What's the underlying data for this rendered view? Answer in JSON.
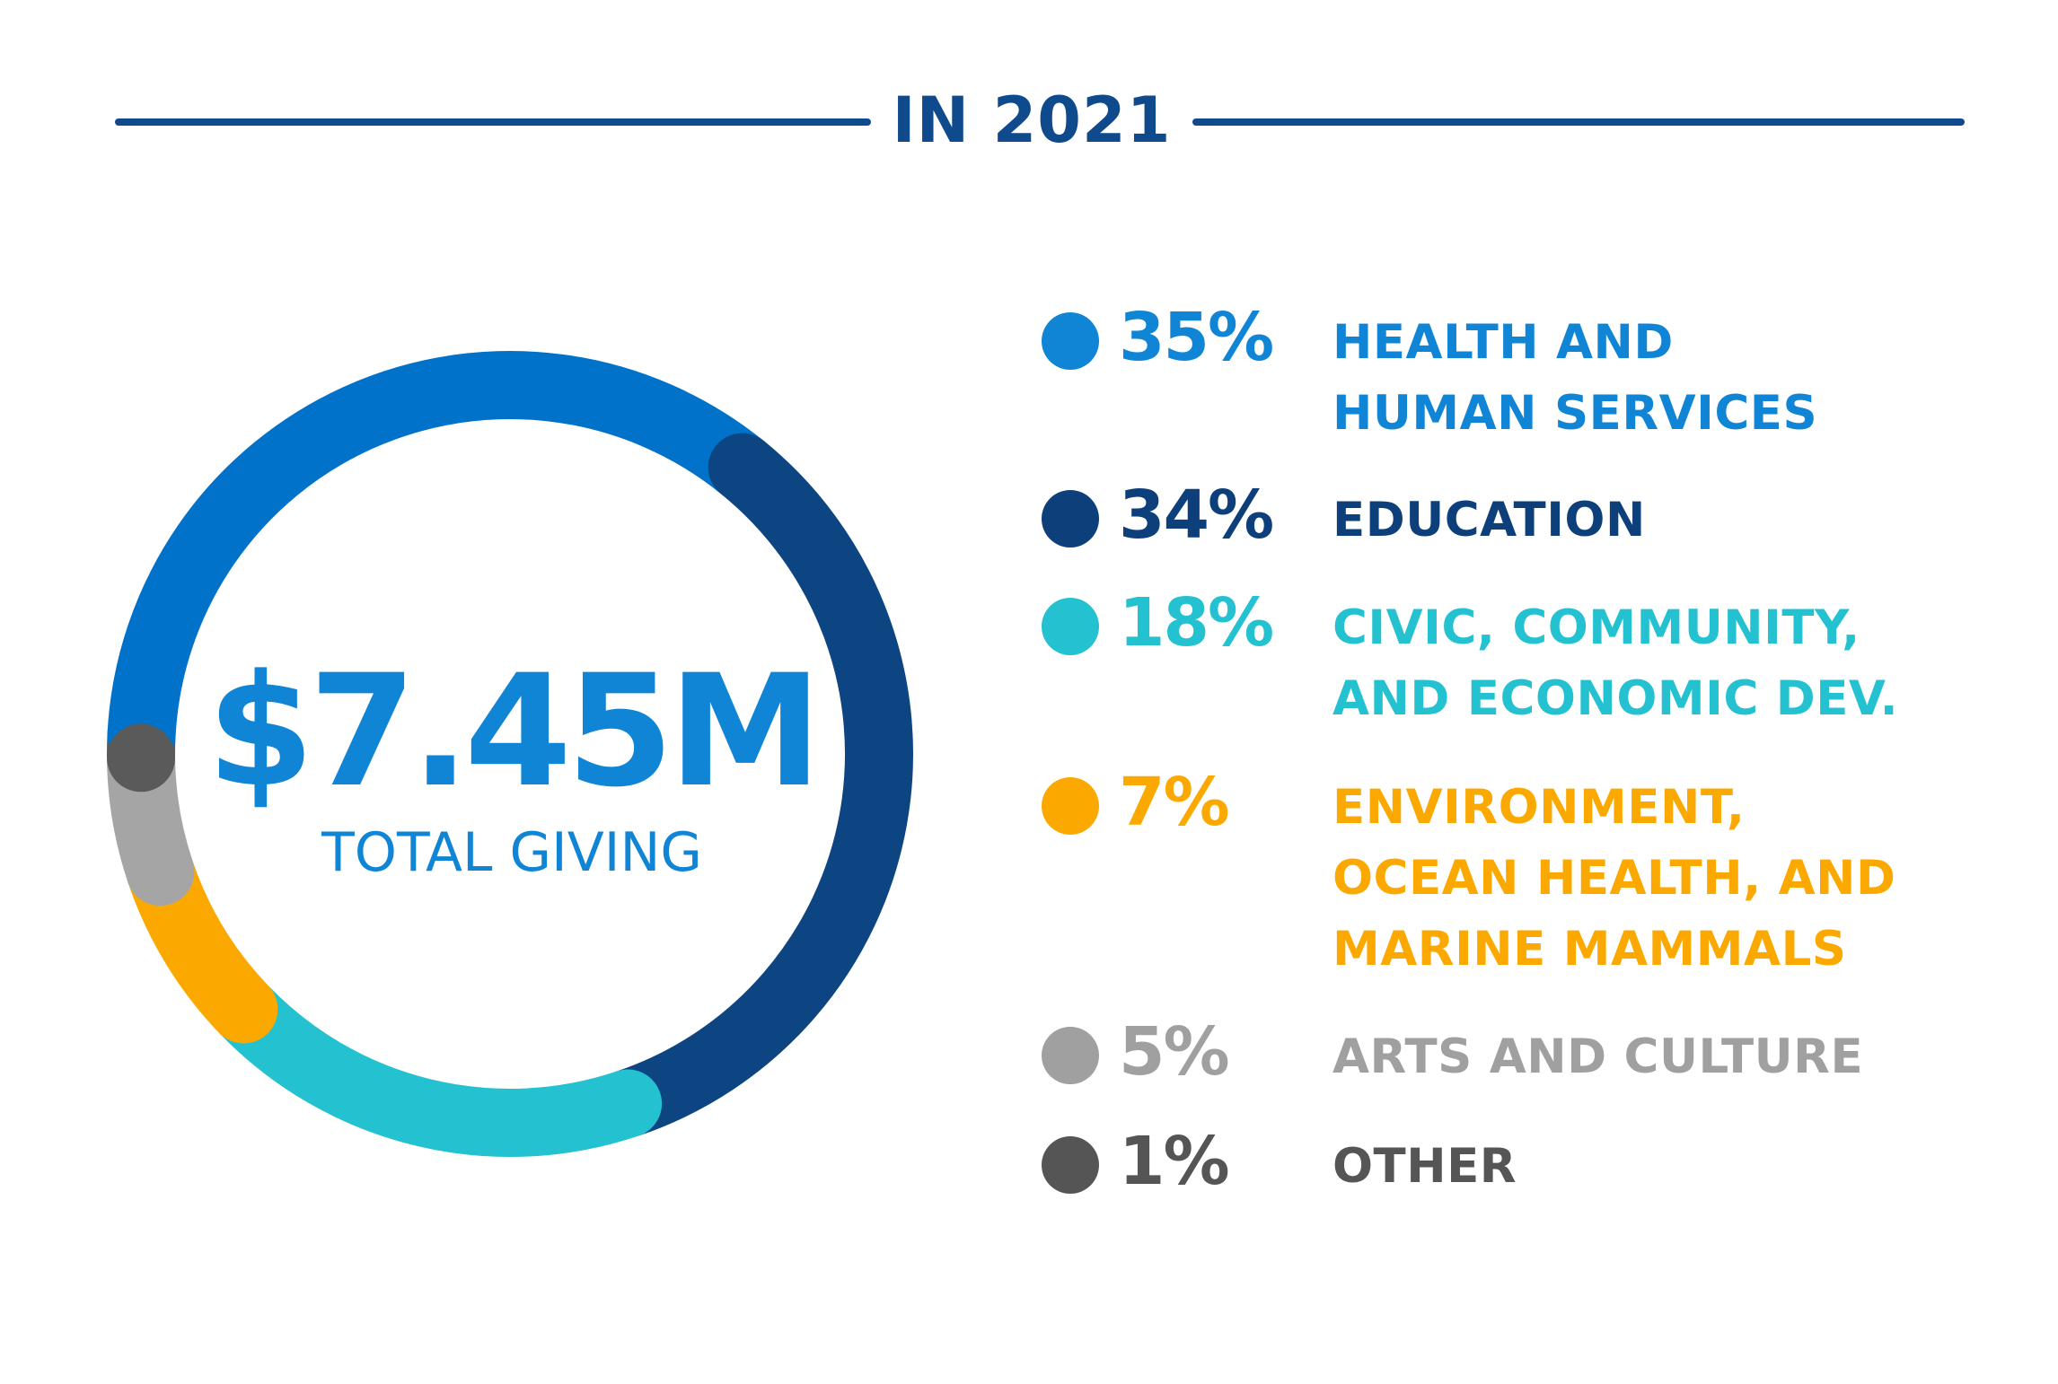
{
  "heading": "IN 2021",
  "center": {
    "value": "$7.45M",
    "label": "TOTAL GIVING"
  },
  "chart_data": {
    "type": "pie",
    "categories": [
      "HEALTH AND HUMAN SERVICES",
      "EDUCATION",
      "CIVIC, COMMUNITY, AND ECONOMIC DEV.",
      "ENVIRONMENT, OCEAN HEALTH, AND MARINE MAMMALS",
      "ARTS AND CULTURE",
      "OTHER"
    ],
    "values": [
      35,
      34,
      18,
      7,
      5,
      1
    ],
    "colors": [
      "#0072c9",
      "#0d4582",
      "#24c2d0",
      "#fba900",
      "#a5a5a5",
      "#5a5a5a"
    ],
    "unit": "%"
  },
  "legend": [
    {
      "pct": "35%",
      "label": "HEALTH AND\nHUMAN SERVICES",
      "pct_color": "#1085d6",
      "label_color": "#1085d6",
      "dot_color": "#1085d6"
    },
    {
      "pct": "34%",
      "label": "EDUCATION",
      "pct_color": "#0d3f7a",
      "label_color": "#0d3f7a",
      "dot_color": "#0d3f7a"
    },
    {
      "pct": "18%",
      "label": "CIVIC, COMMUNITY,\nAND ECONOMIC DEV.",
      "pct_color": "#24c2d0",
      "label_color": "#24c2d0",
      "dot_color": "#24c2d0"
    },
    {
      "pct": "7%",
      "label": "ENVIRONMENT,\nOCEAN HEALTH, AND\nMARINE MAMMALS",
      "pct_color": "#fba900",
      "label_color": "#fba900",
      "dot_color": "#fba900"
    },
    {
      "pct": "5%",
      "label": "ARTS AND CULTURE",
      "pct_color": "#a0a0a0",
      "label_color": "#a0a0a0",
      "dot_color": "#a0a0a0"
    },
    {
      "pct": "1%",
      "label": "OTHER",
      "pct_color": "#555555",
      "label_color": "#555555",
      "dot_color": "#555555"
    }
  ]
}
